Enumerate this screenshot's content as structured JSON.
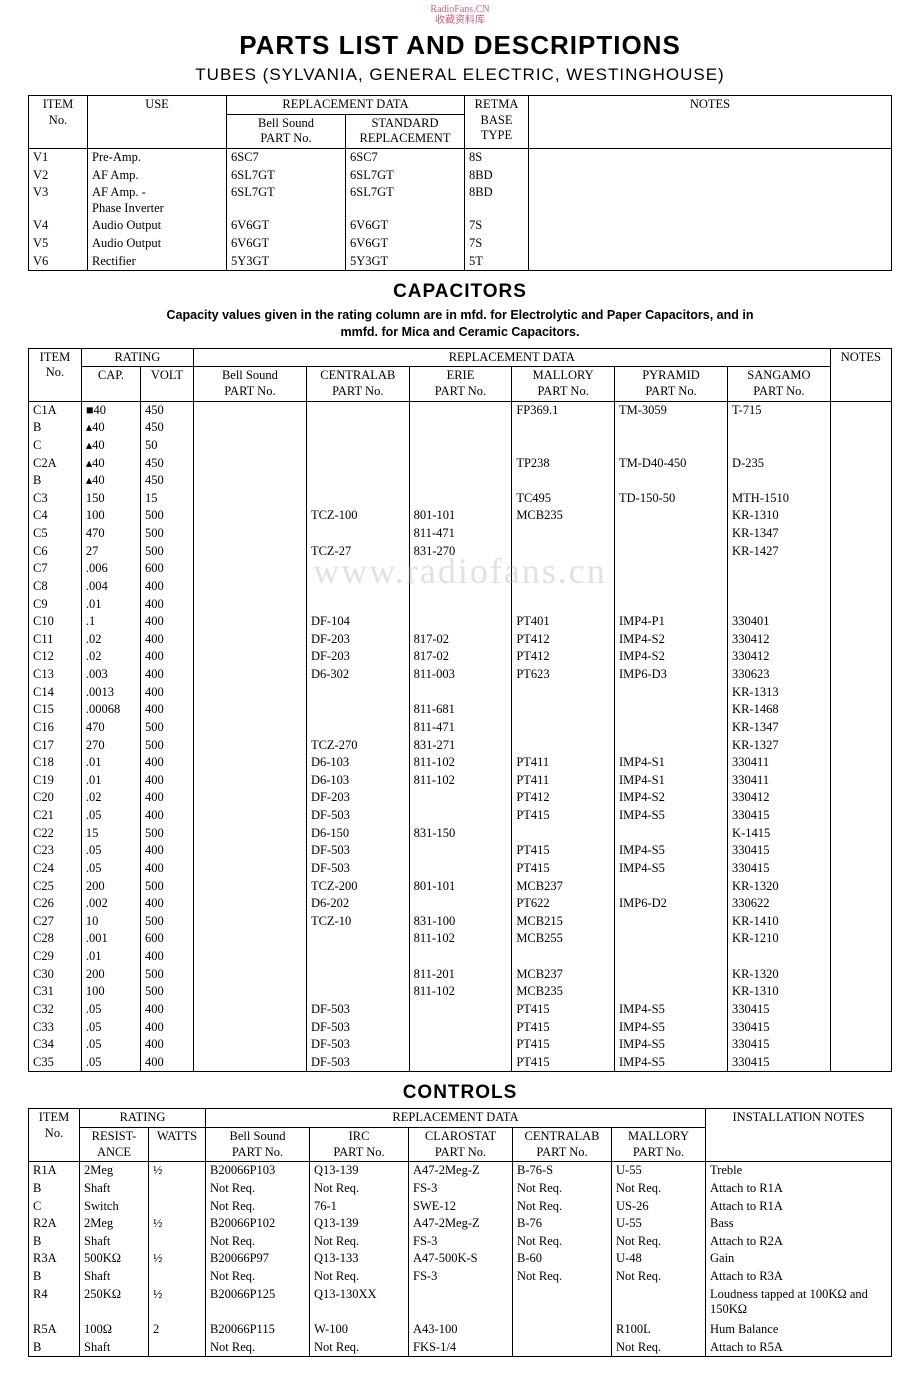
{
  "watermark_top": "RadioFans.CN\n收藏资料库",
  "watermark_mid": "www.radiofans.cn",
  "title": "PARTS LIST AND DESCRIPTIONS",
  "subtitle": "TUBES (SYLVANIA, GENERAL ELECTRIC, WESTINGHOUSE)",
  "tubes": {
    "headers": {
      "item": "ITEM\nNo.",
      "use": "USE",
      "repl": "REPLACEMENT DATA",
      "bell": "Bell Sound\nPART No.",
      "std": "STANDARD\nREPLACEMENT",
      "retma": "RETMA\nBASE\nTYPE",
      "notes": "NOTES"
    },
    "rows": [
      [
        "V1",
        "Pre-Amp.",
        "6SC7",
        "6SC7",
        "8S",
        ""
      ],
      [
        "V2",
        "AF Amp.",
        "6SL7GT",
        "6SL7GT",
        "8BD",
        ""
      ],
      [
        "V3",
        "AF Amp. -\nPhase Inverter",
        "6SL7GT",
        "6SL7GT",
        "8BD",
        ""
      ],
      [
        "V4",
        "Audio Output",
        "6V6GT",
        "6V6GT",
        "7S",
        ""
      ],
      [
        "V5",
        "Audio Output",
        "6V6GT",
        "6V6GT",
        "7S",
        ""
      ],
      [
        "V6",
        "Rectifier",
        "5Y3GT",
        "5Y3GT",
        "5T",
        ""
      ]
    ]
  },
  "capacitors": {
    "heading": "CAPACITORS",
    "note": "Capacity values given in the rating column are in mfd. for Electrolytic and Paper Capacitors, and in mmfd. for Mica and Ceramic Capacitors.",
    "headers": {
      "item": "ITEM\nNo.",
      "rating": "RATING",
      "cap": "CAP.",
      "volt": "VOLT",
      "repl": "REPLACEMENT DATA",
      "bell": "Bell Sound\nPART No.",
      "centralab": "CENTRALAB\nPART No.",
      "erie": "ERIE\nPART No.",
      "mallory": "MALLORY\nPART No.",
      "pyramid": "PYRAMID\nPART No.",
      "sangamo": "SANGAMO\nPART No.",
      "notes": "NOTES"
    },
    "rows": [
      [
        "C1A",
        "■40",
        "450",
        "",
        "",
        "",
        "FP369.1",
        "TM-3059",
        "T-715",
        ""
      ],
      [
        "B",
        "▴40",
        "450",
        "",
        "",
        "",
        "",
        "",
        "",
        ""
      ],
      [
        "C",
        "▴40",
        "50",
        "",
        "",
        "",
        "",
        "",
        "",
        ""
      ],
      [
        "C2A",
        "▴40",
        "450",
        "",
        "",
        "",
        "TP238",
        "TM-D40-450",
        "D-235",
        ""
      ],
      [
        "B",
        "▴40",
        "450",
        "",
        "",
        "",
        "",
        "",
        "",
        ""
      ],
      [
        "C3",
        "150",
        "15",
        "",
        "",
        "",
        "TC495",
        "TD-150-50",
        "MTH-1510",
        ""
      ],
      [
        "C4",
        "100",
        "500",
        "",
        "TCZ-100",
        "801-101",
        "MCB235",
        "",
        "KR-1310",
        ""
      ],
      [
        "C5",
        "470",
        "500",
        "",
        "",
        "811-471",
        "",
        "",
        "KR-1347",
        ""
      ],
      [
        "C6",
        "27",
        "500",
        "",
        "TCZ-27",
        "831-270",
        "",
        "",
        "KR-1427",
        ""
      ],
      [
        "C7",
        ".006",
        "600",
        "",
        "",
        "",
        "",
        "",
        "",
        ""
      ],
      [
        "C8",
        ".004",
        "400",
        "",
        "",
        "",
        "",
        "",
        "",
        ""
      ],
      [
        "C9",
        ".01",
        "400",
        "",
        "",
        "",
        "",
        "",
        "",
        ""
      ],
      [
        "C10",
        ".1",
        "400",
        "",
        "DF-104",
        "",
        "PT401",
        "IMP4-P1",
        "330401",
        ""
      ],
      [
        "C11",
        ".02",
        "400",
        "",
        "DF-203",
        "817-02",
        "PT412",
        "IMP4-S2",
        "330412",
        ""
      ],
      [
        "C12",
        ".02",
        "400",
        "",
        "DF-203",
        "817-02",
        "PT412",
        "IMP4-S2",
        "330412",
        ""
      ],
      [
        "C13",
        ".003",
        "400",
        "",
        "D6-302",
        "811-003",
        "PT623",
        "IMP6-D3",
        "330623",
        ""
      ],
      [
        "C14",
        ".0013",
        "400",
        "",
        "",
        "",
        "",
        "",
        "KR-1313",
        ""
      ],
      [
        "C15",
        ".00068",
        "400",
        "",
        "",
        "811-681",
        "",
        "",
        "KR-1468",
        ""
      ],
      [
        "C16",
        "470",
        "500",
        "",
        "",
        "811-471",
        "",
        "",
        "KR-1347",
        ""
      ],
      [
        "C17",
        "270",
        "500",
        "",
        "TCZ-270",
        "831-271",
        "",
        "",
        "KR-1327",
        ""
      ],
      [
        "C18",
        ".01",
        "400",
        "",
        "D6-103",
        "811-102",
        "PT411",
        "IMP4-S1",
        "330411",
        ""
      ],
      [
        "C19",
        ".01",
        "400",
        "",
        "D6-103",
        "811-102",
        "PT411",
        "IMP4-S1",
        "330411",
        ""
      ],
      [
        "C20",
        ".02",
        "400",
        "",
        "DF-203",
        "",
        "PT412",
        "IMP4-S2",
        "330412",
        ""
      ],
      [
        "C21",
        ".05",
        "400",
        "",
        "DF-503",
        "",
        "PT415",
        "IMP4-S5",
        "330415",
        ""
      ],
      [
        "C22",
        "15",
        "500",
        "",
        "D6-150",
        "831-150",
        "",
        "",
        "K-1415",
        ""
      ],
      [
        "C23",
        ".05",
        "400",
        "",
        "DF-503",
        "",
        "PT415",
        "IMP4-S5",
        "330415",
        ""
      ],
      [
        "C24",
        ".05",
        "400",
        "",
        "DF-503",
        "",
        "PT415",
        "IMP4-S5",
        "330415",
        ""
      ],
      [
        "C25",
        "200",
        "500",
        "",
        "TCZ-200",
        "801-101",
        "MCB237",
        "",
        "KR-1320",
        ""
      ],
      [
        "C26",
        ".002",
        "400",
        "",
        "D6-202",
        "",
        "PT622",
        "IMP6-D2",
        "330622",
        ""
      ],
      [
        "C27",
        "10",
        "500",
        "",
        "TCZ-10",
        "831-100",
        "MCB215",
        "",
        "KR-1410",
        ""
      ],
      [
        "C28",
        ".001",
        "600",
        "",
        "",
        "811-102",
        "MCB255",
        "",
        "KR-1210",
        ""
      ],
      [
        "C29",
        ".01",
        "400",
        "",
        "",
        "",
        "",
        "",
        "",
        ""
      ],
      [
        "C30",
        "200",
        "500",
        "",
        "",
        "811-201",
        "MCB237",
        "",
        "KR-1320",
        ""
      ],
      [
        "C31",
        "100",
        "500",
        "",
        "",
        "811-102",
        "MCB235",
        "",
        "KR-1310",
        ""
      ],
      [
        "C32",
        ".05",
        "400",
        "",
        "DF-503",
        "",
        "PT415",
        "IMP4-S5",
        "330415",
        ""
      ],
      [
        "C33",
        ".05",
        "400",
        "",
        "DF-503",
        "",
        "PT415",
        "IMP4-S5",
        "330415",
        ""
      ],
      [
        "C34",
        ".05",
        "400",
        "",
        "DF-503",
        "",
        "PT415",
        "IMP4-S5",
        "330415",
        ""
      ],
      [
        "C35",
        ".05",
        "400",
        "",
        "DF-503",
        "",
        "PT415",
        "IMP4-S5",
        "330415",
        ""
      ]
    ]
  },
  "controls": {
    "heading": "CONTROLS",
    "headers": {
      "item": "ITEM\nNo.",
      "rating": "RATING",
      "resist": "RESIST-\nANCE",
      "watts": "WATTS",
      "repl": "REPLACEMENT DATA",
      "bell": "Bell Sound\nPART No.",
      "irc": "IRC\nPART No.",
      "clarostat": "CLAROSTAT\nPART No.",
      "centralab": "CENTRALAB\nPART No.",
      "mallory": "MALLORY\nPART No.",
      "notes": "INSTALLATION NOTES"
    },
    "rows": [
      [
        "R1A",
        "2Meg",
        "½",
        "B20066P103",
        "Q13-139",
        "A47-2Meg-Z",
        "B-76-S",
        "U-55",
        "Treble"
      ],
      [
        "B",
        "Shaft",
        "",
        "Not Req.",
        "Not Req.",
        "FS-3",
        "Not Req.",
        "Not Req.",
        "Attach to R1A"
      ],
      [
        "C",
        "Switch",
        "",
        "Not Req.",
        "76-1",
        "SWE-12",
        "Not Req.",
        "US-26",
        "Attach to R1A"
      ],
      [
        "R2A",
        "2Meg",
        "½",
        "B20066P102",
        "Q13-139",
        "A47-2Meg-Z",
        "B-76",
        "U-55",
        "Bass"
      ],
      [
        "B",
        "Shaft",
        "",
        "Not Req.",
        "Not Req.",
        "FS-3",
        "Not Req.",
        "Not Req.",
        "Attach to R2A"
      ],
      [
        "R3A",
        "500KΩ",
        "½",
        "B20066P97",
        "Q13-133",
        "A47-500K-S",
        "B-60",
        "U-48",
        "Gain"
      ],
      [
        "B",
        "Shaft",
        "",
        "Not Req.",
        "Not Req.",
        "FS-3",
        "Not Req.",
        "Not Req.",
        "Attach to R3A"
      ],
      [
        "R4",
        "250KΩ",
        "½",
        "B20066P125",
        "Q13-130XX",
        "",
        "",
        "",
        "Loudness tapped at 100KΩ and 150KΩ"
      ],
      [
        "",
        "",
        "",
        "",
        "",
        "",
        "",
        "",
        ""
      ],
      [
        "R5A",
        "100Ω",
        "2",
        "B20066P115",
        "W-100",
        "A43-100",
        "",
        "R100L",
        "Hum Balance"
      ],
      [
        "B",
        "Shaft",
        "",
        "Not Req.",
        "Not Req.",
        "FKS-1/4",
        "",
        "Not Req.",
        "Attach to R5A"
      ]
    ]
  }
}
